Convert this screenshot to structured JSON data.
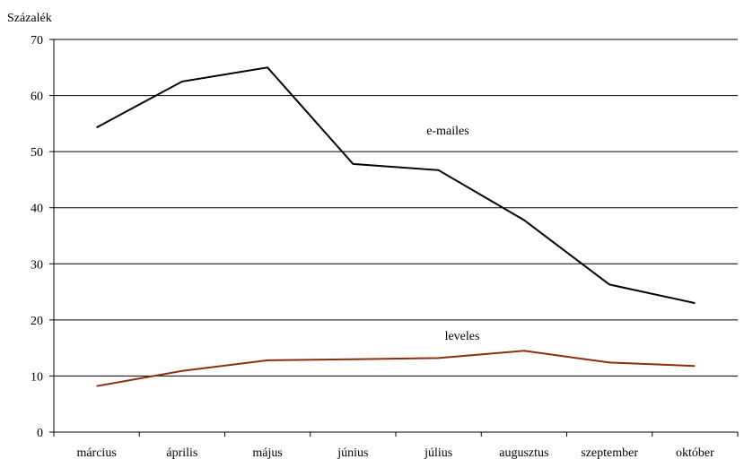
{
  "chart_data": {
    "type": "line",
    "ylabel": "Százalék",
    "ylim": [
      0,
      70
    ],
    "yticks": [
      0,
      10,
      20,
      30,
      40,
      50,
      60,
      70
    ],
    "grid": true,
    "categories": [
      "március",
      "április",
      "május",
      "június",
      "július",
      "augusztus",
      "szeptember",
      "október"
    ],
    "series": [
      {
        "name": "e-mailes",
        "color": "#000000",
        "values": [
          54.3,
          62.5,
          65.0,
          47.8,
          46.7,
          37.8,
          26.3,
          23.0
        ]
      },
      {
        "name": "leveles",
        "color": "#8b2e0e",
        "values": [
          8.2,
          10.9,
          12.8,
          13.0,
          13.2,
          14.5,
          12.4,
          11.8
        ]
      }
    ]
  }
}
